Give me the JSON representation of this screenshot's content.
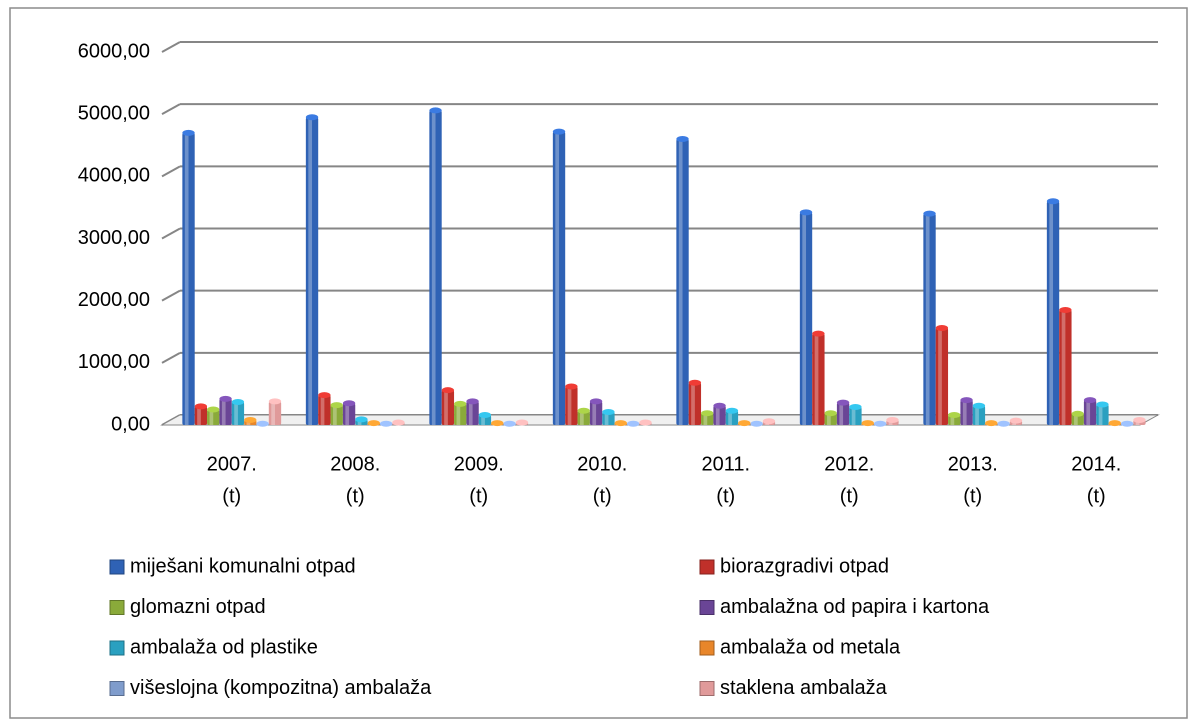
{
  "chart_data": {
    "type": "bar",
    "categories": [
      [
        "2007.",
        "(t)"
      ],
      [
        "2008.",
        "(t)"
      ],
      [
        "2009.",
        "(t)"
      ],
      [
        "2010.",
        "(t)"
      ],
      [
        "2011.",
        "(t)"
      ],
      [
        "2012.",
        "(t)"
      ],
      [
        "2013.",
        "(t)"
      ],
      [
        "2014.",
        "(t)"
      ]
    ],
    "series": [
      {
        "name": "miješani komunalni otpad",
        "color": "#2f62b5",
        "values": [
          4700,
          4950,
          5060,
          4720,
          4600,
          3420,
          3400,
          3600
        ]
      },
      {
        "name": "biorazgradivi otpad",
        "color": "#c0302a",
        "values": [
          300,
          480,
          560,
          620,
          680,
          1470,
          1560,
          1850
        ]
      },
      {
        "name": "glomazni otpad",
        "color": "#8aaa3a",
        "values": [
          250,
          320,
          340,
          230,
          190,
          190,
          160,
          180
        ]
      },
      {
        "name": "ambalažna od papira i kartona",
        "color": "#6a4596",
        "values": [
          420,
          350,
          380,
          380,
          310,
          360,
          400,
          400
        ]
      },
      {
        "name": "ambalaža od plastike",
        "color": "#2aa0c0",
        "values": [
          370,
          90,
          160,
          210,
          230,
          290,
          310,
          330
        ]
      },
      {
        "name": "ambalaža od metala",
        "color": "#e8862a",
        "values": [
          80,
          30,
          30,
          30,
          30,
          30,
          30,
          30
        ]
      },
      {
        "name": "višeslojna (kompozitna) ambalaža",
        "color": "#7f9ccc",
        "values": [
          20,
          20,
          20,
          20,
          20,
          20,
          20,
          20
        ]
      },
      {
        "name": "staklena ambalaža",
        "color": "#e09a9a",
        "values": [
          380,
          40,
          40,
          40,
          60,
          80,
          70,
          80
        ]
      }
    ],
    "ylim": [
      0,
      6000
    ],
    "yticks": [
      {
        "value": 0,
        "label": "0,00"
      },
      {
        "value": 1000,
        "label": "1000,00"
      },
      {
        "value": 2000,
        "label": "2000,00"
      },
      {
        "value": 3000,
        "label": "3000,00"
      },
      {
        "value": 4000,
        "label": "4000,00"
      },
      {
        "value": 5000,
        "label": "5000,00"
      },
      {
        "value": 6000,
        "label": "6000,00"
      }
    ],
    "grid": true
  }
}
